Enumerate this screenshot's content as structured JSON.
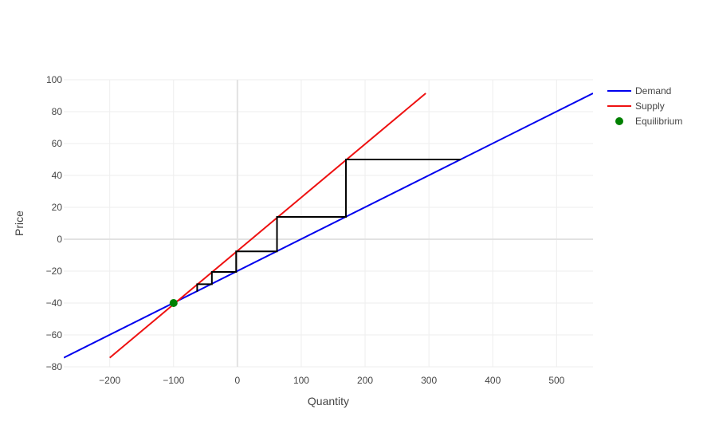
{
  "chart_data": {
    "type": "line",
    "title": "",
    "xlabel": "Quantity",
    "ylabel": "Price",
    "xlim": [
      -272,
      557
    ],
    "ylim": [
      -80,
      100
    ],
    "xticks": [
      -200,
      -100,
      0,
      100,
      200,
      300,
      400,
      500
    ],
    "xtick_labels": [
      "−200",
      "−100",
      "0",
      "100",
      "200",
      "300",
      "400",
      "500"
    ],
    "yticks": [
      -80,
      -60,
      -40,
      -20,
      0,
      20,
      40,
      60,
      80,
      100
    ],
    "ytick_labels": [
      "−80",
      "−60",
      "−40",
      "−20",
      "0",
      "20",
      "40",
      "60",
      "80",
      "100"
    ],
    "grid": true,
    "legend_position": "top-right",
    "series": [
      {
        "name": "Demand",
        "kind": "line",
        "color": "#0000ee",
        "x": [
          -272,
          557
        ],
        "y": [
          -74.3,
          91.5
        ]
      },
      {
        "name": "Supply",
        "kind": "line",
        "color": "#ee1111",
        "x": [
          -200,
          295
        ],
        "y": [
          -74.3,
          91.5
        ]
      },
      {
        "name": "Equilibrium",
        "kind": "marker",
        "color": "#008000",
        "x": [
          -100
        ],
        "y": [
          -40
        ]
      }
    ],
    "cobweb": {
      "color": "#000000",
      "x": [
        350,
        170,
        170,
        62,
        62,
        -2,
        -2,
        -40,
        -40,
        -63,
        -63
      ],
      "y": [
        50,
        50,
        14,
        14,
        -7.6,
        -7.6,
        -20.5,
        -20.5,
        -28.2,
        -28.2,
        -32.9
      ]
    }
  }
}
